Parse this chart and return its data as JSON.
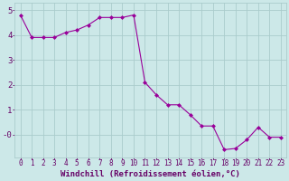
{
  "x": [
    0,
    1,
    2,
    3,
    4,
    5,
    6,
    7,
    8,
    9,
    10,
    11,
    12,
    13,
    14,
    15,
    16,
    17,
    18,
    19,
    20,
    21,
    22,
    23
  ],
  "y": [
    4.8,
    3.9,
    3.9,
    3.9,
    4.1,
    4.2,
    4.4,
    4.7,
    4.7,
    4.7,
    4.8,
    2.1,
    1.6,
    1.2,
    1.2,
    0.8,
    0.35,
    0.35,
    -0.6,
    -0.55,
    -0.2,
    0.3,
    -0.1,
    -0.1
  ],
  "line_color": "#990099",
  "marker": "D",
  "marker_size": 2,
  "bg_color": "#cce8e8",
  "grid_color": "#aacccc",
  "xlabel": "Windchill (Refroidissement éolien,°C)",
  "xlabel_color": "#660066",
  "xlabel_fontsize": 6.5,
  "ytick_vals": [
    0,
    1,
    2,
    3,
    4,
    5
  ],
  "ytick_labels": [
    "-0",
    "1",
    "2",
    "3",
    "4",
    "5"
  ],
  "xtick_labels": [
    "0",
    "1",
    "2",
    "3",
    "4",
    "5",
    "6",
    "7",
    "8",
    "9",
    "10",
    "11",
    "12",
    "13",
    "14",
    "15",
    "16",
    "17",
    "18",
    "19",
    "20",
    "21",
    "22",
    "23"
  ],
  "tick_color": "#660066",
  "tick_fontsize": 5.5,
  "ylim": [
    -0.9,
    5.3
  ],
  "xlim": [
    -0.5,
    23.5
  ]
}
